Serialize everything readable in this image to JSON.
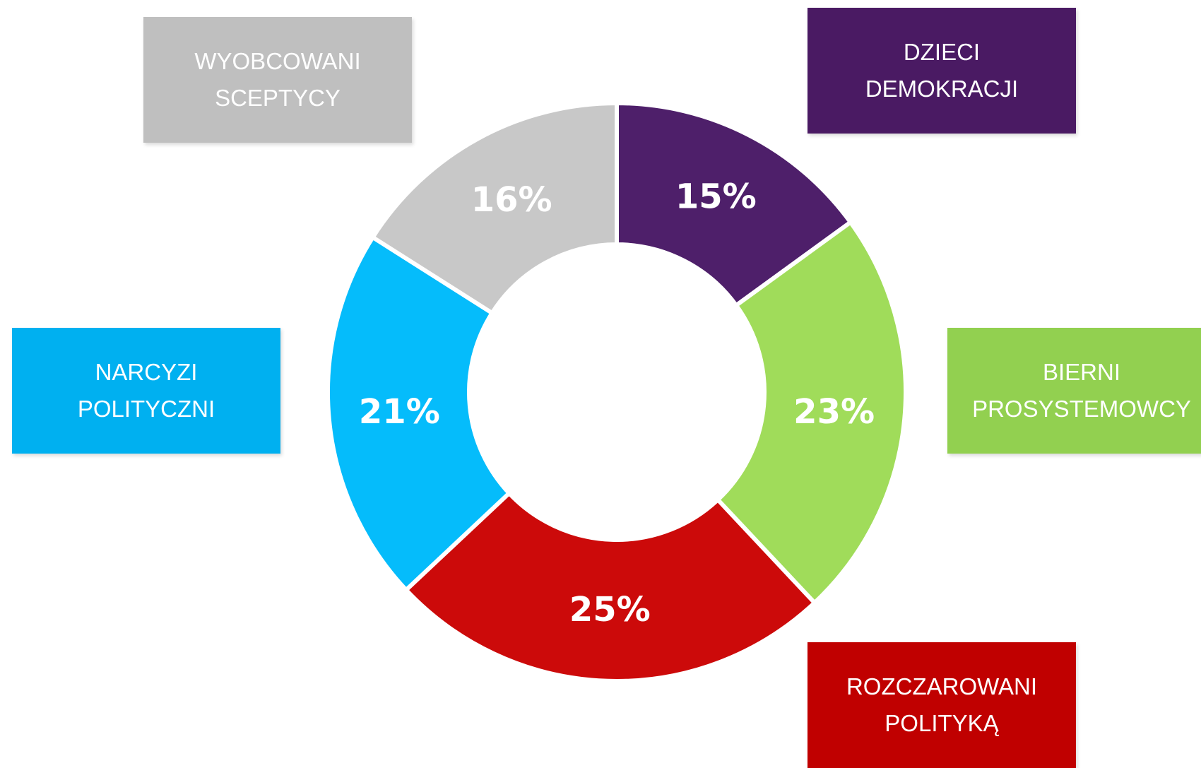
{
  "chart_data": {
    "type": "donut",
    "categories": [
      [
        "DZIECI",
        "DEMOKRACJI"
      ],
      [
        "BIERNI",
        "PROSYSTEMOWCY"
      ],
      [
        "ROZCZAROWANI",
        "POLITYKĄ"
      ],
      [
        "NARCYZI",
        "POLITYCZNI"
      ],
      [
        "WYOBCOWANI",
        "SCEPTYCY"
      ]
    ],
    "values": [
      15,
      23,
      25,
      21,
      16
    ],
    "value_labels": [
      "15%",
      "23%",
      "25%",
      "21%",
      "16%"
    ],
    "colors": [
      "#4e1f6a",
      "#a0dc5a",
      "#cc0a0a",
      "#05bcfb",
      "#c8c8c8"
    ],
    "box_colors": [
      "#4a1a63",
      "#92d050",
      "#c00000",
      "#00b0f0",
      "#bfbfbf"
    ]
  }
}
